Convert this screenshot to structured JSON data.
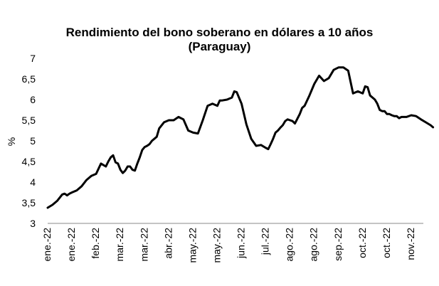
{
  "chart_data": {
    "type": "line",
    "title": "Rendimiento del bono soberano en dólares a 10 años",
    "subtitle": "(Paraguay)",
    "ylabel": "%",
    "xlabel": "",
    "ylim": [
      3,
      7
    ],
    "yticks": [
      "3",
      "3,5",
      "4",
      "4,5",
      "5",
      "5,5",
      "6",
      "6,5",
      "7"
    ],
    "xticks": [
      "ene.-22",
      "ene.-22",
      "feb.-22",
      "mar.-22",
      "mar.-22",
      "abr.-22",
      "may.-22",
      "may.-22",
      "jun.-22",
      "jul.-22",
      "ago.-22",
      "ago.-22",
      "sep.-22",
      "oct.-22",
      "oct.-22",
      "nov.-22"
    ],
    "grid": false,
    "legend": "none",
    "line_color": "#000000",
    "series": [
      {
        "x": [
          0,
          0.2,
          0.4,
          0.6,
          0.7,
          0.8,
          0.9,
          1.0,
          1.2,
          1.4,
          1.6,
          1.8,
          2.0,
          2.2,
          2.4,
          2.5,
          2.6,
          2.7,
          2.8,
          2.9,
          3.0,
          3.1,
          3.2,
          3.3,
          3.4,
          3.5,
          3.6,
          3.7,
          3.8,
          3.9,
          4.0,
          4.1,
          4.2,
          4.3,
          4.4,
          4.5,
          4.6,
          4.8,
          5.0,
          5.2,
          5.4,
          5.6,
          5.8,
          6.0,
          6.2,
          6.4,
          6.6,
          6.8,
          7.0,
          7.1,
          7.2,
          7.4,
          7.6,
          7.7,
          7.8,
          8.0,
          8.2,
          8.4,
          8.6,
          8.8,
          9.0,
          9.1,
          9.2,
          9.3,
          9.4,
          9.5,
          9.6,
          9.7,
          9.8,
          9.9,
          10.0,
          10.1,
          10.2,
          10.4,
          10.5,
          10.6,
          10.8,
          11.0,
          11.2,
          11.4,
          11.6,
          11.8,
          12.0,
          12.2,
          12.4,
          12.6,
          12.8,
          13.0,
          13.1,
          13.2,
          13.3,
          13.5,
          13.6,
          13.7,
          13.8,
          13.9,
          14.0,
          14.1,
          14.2,
          14.3,
          14.4,
          14.5,
          14.6,
          14.8,
          15.0,
          15.2,
          15.4,
          15.6,
          15.8,
          15.9
        ],
        "values": [
          3.38,
          3.45,
          3.55,
          3.7,
          3.72,
          3.68,
          3.72,
          3.75,
          3.8,
          3.9,
          4.05,
          4.15,
          4.2,
          4.45,
          4.38,
          4.5,
          4.6,
          4.65,
          4.48,
          4.45,
          4.3,
          4.22,
          4.28,
          4.38,
          4.38,
          4.3,
          4.28,
          4.45,
          4.6,
          4.78,
          4.85,
          4.88,
          4.92,
          5.0,
          5.05,
          5.1,
          5.3,
          5.45,
          5.5,
          5.5,
          5.58,
          5.52,
          5.25,
          5.2,
          5.18,
          5.5,
          5.85,
          5.9,
          5.85,
          5.98,
          5.98,
          6.0,
          6.05,
          6.2,
          6.18,
          5.9,
          5.4,
          5.05,
          4.88,
          4.9,
          4.83,
          4.8,
          4.92,
          5.05,
          5.2,
          5.25,
          5.32,
          5.38,
          5.48,
          5.52,
          5.5,
          5.48,
          5.42,
          5.65,
          5.8,
          5.85,
          6.1,
          6.38,
          6.58,
          6.45,
          6.52,
          6.72,
          6.78,
          6.78,
          6.7,
          6.15,
          6.2,
          6.15,
          6.32,
          6.3,
          6.1,
          6.0,
          5.9,
          5.75,
          5.72,
          5.72,
          5.65,
          5.65,
          5.62,
          5.6,
          5.6,
          5.55,
          5.58,
          5.58,
          5.62,
          5.6,
          5.52,
          5.45,
          5.38,
          5.33
        ]
      }
    ]
  }
}
